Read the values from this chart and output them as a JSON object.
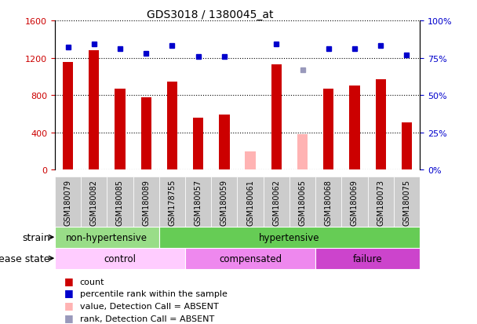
{
  "title": "GDS3018 / 1380045_at",
  "samples": [
    "GSM180079",
    "GSM180082",
    "GSM180085",
    "GSM180089",
    "GSM178755",
    "GSM180057",
    "GSM180059",
    "GSM180061",
    "GSM180062",
    "GSM180065",
    "GSM180068",
    "GSM180069",
    "GSM180073",
    "GSM180075"
  ],
  "counts": [
    1150,
    1280,
    870,
    780,
    940,
    560,
    590,
    200,
    1130,
    380,
    870,
    900,
    970,
    510
  ],
  "counts_absent": [
    false,
    false,
    false,
    false,
    false,
    false,
    false,
    true,
    false,
    true,
    false,
    false,
    false,
    false
  ],
  "percentile_ranks": [
    82,
    84,
    81,
    78,
    83,
    76,
    76,
    null,
    84,
    67,
    81,
    81,
    83,
    77
  ],
  "percentile_ranks_absent": [
    false,
    false,
    false,
    false,
    false,
    false,
    false,
    false,
    false,
    true,
    false,
    false,
    false,
    false
  ],
  "bar_color_present": "#cc0000",
  "bar_color_absent": "#ffb3b3",
  "dot_color_present": "#0000cc",
  "dot_color_absent": "#9999bb",
  "ylim_left": [
    0,
    1600
  ],
  "ylim_right": [
    0,
    100
  ],
  "yticks_left": [
    0,
    400,
    800,
    1200,
    1600
  ],
  "yticks_right": [
    0,
    25,
    50,
    75,
    100
  ],
  "ytick_labels_right": [
    "0%",
    "25%",
    "50%",
    "75%",
    "100%"
  ],
  "strain_groups": [
    {
      "label": "non-hypertensive",
      "start": 0,
      "end": 4,
      "color": "#99dd88"
    },
    {
      "label": "hypertensive",
      "start": 4,
      "end": 14,
      "color": "#66cc55"
    }
  ],
  "disease_groups": [
    {
      "label": "control",
      "start": 0,
      "end": 5,
      "color": "#ffccff"
    },
    {
      "label": "compensated",
      "start": 5,
      "end": 10,
      "color": "#ee88ee"
    },
    {
      "label": "failure",
      "start": 10,
      "end": 14,
      "color": "#cc44cc"
    }
  ],
  "legend_items": [
    {
      "label": "count",
      "color": "#cc0000"
    },
    {
      "label": "percentile rank within the sample",
      "color": "#0000cc"
    },
    {
      "label": "value, Detection Call = ABSENT",
      "color": "#ffb3b3"
    },
    {
      "label": "rank, Detection Call = ABSENT",
      "color": "#9999bb"
    }
  ],
  "strain_label": "strain",
  "disease_label": "disease state",
  "bar_width": 0.4,
  "xtick_bg_color": "#cccccc",
  "plot_bg_color": "#ffffff"
}
